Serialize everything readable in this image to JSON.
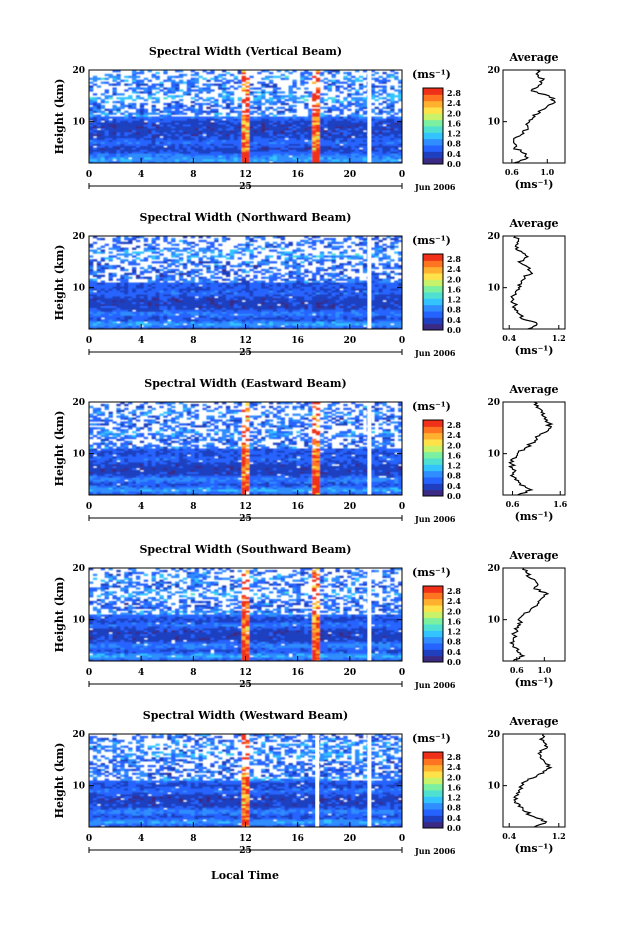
{
  "figure": {
    "xlabel": "Local Time",
    "date_label": "Jun 2006",
    "day_label": "25",
    "avg_title": "Average",
    "unit_label": "(ms⁻¹)",
    "ylabel": "Height (km)"
  },
  "colormap": [
    "#3b2a84",
    "#1f3fbf",
    "#2563ff",
    "#2f8dff",
    "#33c4ff",
    "#4fe0d2",
    "#7af0a0",
    "#c8f26a",
    "#ffe24a",
    "#ffb02e",
    "#ff7420",
    "#f03018"
  ],
  "chart_data": [
    {
      "type": "heatmap",
      "title": "Spectral Width (Vertical Beam)",
      "xlabel": "",
      "ylabel": "Height (km)",
      "xlim": [
        0,
        24
      ],
      "ylim": [
        2,
        20
      ],
      "x_ticks": [
        "0",
        "4",
        "8",
        "12",
        "16",
        "20",
        "0"
      ],
      "y_ticks": [
        "10",
        "20"
      ],
      "colorbar": {
        "ticks": [
          "0.0",
          "0.4",
          "0.8",
          "1.2",
          "1.6",
          "2.0",
          "2.4",
          "2.8"
        ],
        "range": [
          0,
          3.0
        ]
      },
      "bands": [
        [
          2.5,
          0.5
        ],
        [
          3.5,
          0.35
        ],
        [
          6,
          0.3
        ],
        [
          11,
          0.3
        ],
        [
          14.5,
          0.4
        ],
        [
          16,
          0.1
        ],
        [
          18.5,
          0.3
        ]
      ],
      "hot_columns": [
        12,
        17.5
      ],
      "gap_columns": [
        21.5
      ],
      "average": {
        "xlim": [
          0.5,
          1.2
        ],
        "x_ticks": [
          "0.6",
          "1.0"
        ],
        "profile": [
          [
            2,
            0.62
          ],
          [
            3,
            0.78
          ],
          [
            4,
            0.72
          ],
          [
            5,
            0.63
          ],
          [
            6,
            0.62
          ],
          [
            7,
            0.65
          ],
          [
            8,
            0.72
          ],
          [
            9,
            0.78
          ],
          [
            10,
            0.8
          ],
          [
            11,
            0.86
          ],
          [
            12,
            0.9
          ],
          [
            13,
            1.0
          ],
          [
            14,
            1.08
          ],
          [
            15,
            1.02
          ],
          [
            16,
            0.82
          ],
          [
            17,
            0.9
          ],
          [
            18,
            0.95
          ],
          [
            19,
            0.9
          ],
          [
            20,
            0.88
          ]
        ]
      }
    },
    {
      "type": "heatmap",
      "title": "Spectral Width (Northward Beam)",
      "xlabel": "",
      "ylabel": "Height (km)",
      "xlim": [
        0,
        24
      ],
      "ylim": [
        2,
        20
      ],
      "x_ticks": [
        "0",
        "4",
        "8",
        "12",
        "16",
        "20",
        "0"
      ],
      "y_ticks": [
        "10",
        "20"
      ],
      "colorbar": {
        "ticks": [
          "0.0",
          "0.4",
          "0.8",
          "1.2",
          "1.6",
          "2.0",
          "2.4",
          "2.8"
        ],
        "range": [
          0,
          3.0
        ]
      },
      "bands": [
        [
          3,
          0.6
        ],
        [
          5,
          0.4
        ],
        [
          9,
          0.25
        ],
        [
          10.5,
          0.2
        ],
        [
          16,
          0.25
        ],
        [
          17,
          0.2
        ]
      ],
      "hot_columns": [],
      "gap_columns": [
        21.5
      ],
      "average": {
        "xlim": [
          0.3,
          1.3
        ],
        "x_ticks": [
          "0.4",
          "1.2"
        ],
        "profile": [
          [
            2,
            0.7
          ],
          [
            3,
            0.85
          ],
          [
            4,
            0.6
          ],
          [
            5,
            0.55
          ],
          [
            6,
            0.5
          ],
          [
            7,
            0.47
          ],
          [
            8,
            0.45
          ],
          [
            9,
            0.5
          ],
          [
            10,
            0.55
          ],
          [
            11,
            0.6
          ],
          [
            12,
            0.65
          ],
          [
            13,
            0.75
          ],
          [
            14,
            0.7
          ],
          [
            15,
            0.55
          ],
          [
            16,
            0.7
          ],
          [
            17,
            0.6
          ],
          [
            18,
            0.5
          ],
          [
            19,
            0.55
          ],
          [
            20,
            0.5
          ]
        ]
      }
    },
    {
      "type": "heatmap",
      "title": "Spectral Width (Eastward Beam)",
      "xlabel": "",
      "ylabel": "Height (km)",
      "xlim": [
        0,
        24
      ],
      "ylim": [
        2,
        20
      ],
      "x_ticks": [
        "0",
        "4",
        "8",
        "12",
        "16",
        "20",
        "0"
      ],
      "y_ticks": [
        "10",
        "20"
      ],
      "colorbar": {
        "ticks": [
          "0.0",
          "0.4",
          "0.8",
          "1.2",
          "1.6",
          "2.0",
          "2.4",
          "2.8"
        ],
        "range": [
          0,
          3.0
        ]
      },
      "bands": [
        [
          3,
          0.6
        ],
        [
          5,
          0.45
        ],
        [
          9,
          0.25
        ],
        [
          10.5,
          0.2
        ],
        [
          14,
          0.25
        ],
        [
          18,
          0.2
        ]
      ],
      "hot_columns": [
        12,
        17.5
      ],
      "gap_columns": [
        21.5
      ],
      "average": {
        "xlim": [
          0.4,
          1.7
        ],
        "x_ticks": [
          "0.6",
          "1.6"
        ],
        "profile": [
          [
            2,
            0.7
          ],
          [
            3,
            1.0
          ],
          [
            4,
            0.75
          ],
          [
            5,
            0.65
          ],
          [
            6,
            0.62
          ],
          [
            7,
            0.6
          ],
          [
            8,
            0.58
          ],
          [
            9,
            0.6
          ],
          [
            10,
            0.7
          ],
          [
            11,
            0.85
          ],
          [
            12,
            1.0
          ],
          [
            13,
            1.1
          ],
          [
            14,
            1.25
          ],
          [
            15,
            1.4
          ],
          [
            16,
            1.35
          ],
          [
            17,
            1.3
          ],
          [
            18,
            1.2
          ],
          [
            19,
            1.1
          ],
          [
            20,
            1.05
          ]
        ]
      }
    },
    {
      "type": "heatmap",
      "title": "Spectral Width (Southward Beam)",
      "xlabel": "",
      "ylabel": "Height (km)",
      "xlim": [
        0,
        24
      ],
      "ylim": [
        2,
        20
      ],
      "x_ticks": [
        "0",
        "4",
        "8",
        "12",
        "16",
        "20",
        "0"
      ],
      "y_ticks": [
        "10",
        "20"
      ],
      "colorbar": {
        "ticks": [
          "0.0",
          "0.4",
          "0.8",
          "1.2",
          "1.6",
          "2.0",
          "2.4",
          "2.8"
        ],
        "range": [
          0,
          3.0
        ]
      },
      "bands": [
        [
          3,
          0.6
        ],
        [
          5,
          0.45
        ],
        [
          9,
          0.3
        ],
        [
          11,
          0.3
        ],
        [
          15,
          0.35
        ],
        [
          18,
          0.25
        ]
      ],
      "hot_columns": [
        12,
        17.5
      ],
      "gap_columns": [
        21.5
      ],
      "average": {
        "xlim": [
          0.4,
          1.3
        ],
        "x_ticks": [
          "0.6",
          "1.0"
        ],
        "profile": [
          [
            2,
            0.55
          ],
          [
            3,
            0.7
          ],
          [
            4,
            0.6
          ],
          [
            5,
            0.55
          ],
          [
            6,
            0.55
          ],
          [
            7,
            0.56
          ],
          [
            8,
            0.6
          ],
          [
            9,
            0.65
          ],
          [
            10,
            0.62
          ],
          [
            11,
            0.7
          ],
          [
            12,
            0.8
          ],
          [
            13,
            0.9
          ],
          [
            14,
            0.95
          ],
          [
            15,
            1.05
          ],
          [
            16,
            0.85
          ],
          [
            17,
            0.9
          ],
          [
            18,
            0.8
          ],
          [
            19,
            0.75
          ],
          [
            20,
            0.7
          ]
        ]
      }
    },
    {
      "type": "heatmap",
      "title": "Spectral Width (Westward Beam)",
      "xlabel": "Local Time",
      "ylabel": "Height (km)",
      "xlim": [
        0,
        24
      ],
      "ylim": [
        2,
        20
      ],
      "x_ticks": [
        "0",
        "4",
        "8",
        "12",
        "16",
        "20",
        "0"
      ],
      "y_ticks": [
        "10",
        "20"
      ],
      "colorbar": {
        "ticks": [
          "0.0",
          "0.4",
          "0.8",
          "1.2",
          "1.6",
          "2.0",
          "2.4",
          "2.8"
        ],
        "range": [
          0,
          3.0
        ]
      },
      "bands": [
        [
          3,
          0.55
        ],
        [
          5,
          0.45
        ],
        [
          9,
          0.3
        ],
        [
          11,
          0.25
        ],
        [
          16,
          0.3
        ],
        [
          18,
          0.25
        ]
      ],
      "hot_columns": [
        12
      ],
      "gap_columns": [
        17.5,
        21.5
      ],
      "average": {
        "xlim": [
          0.3,
          1.3
        ],
        "x_ticks": [
          "0.4",
          "1.2"
        ],
        "profile": [
          [
            2,
            0.8
          ],
          [
            3,
            1.0
          ],
          [
            4,
            0.8
          ],
          [
            5,
            0.65
          ],
          [
            6,
            0.55
          ],
          [
            7,
            0.5
          ],
          [
            8,
            0.5
          ],
          [
            9,
            0.55
          ],
          [
            10,
            0.6
          ],
          [
            11,
            0.7
          ],
          [
            12,
            0.85
          ],
          [
            13,
            1.0
          ],
          [
            14,
            1.05
          ],
          [
            15,
            0.95
          ],
          [
            16,
            0.9
          ],
          [
            17,
            0.95
          ],
          [
            18,
            1.0
          ],
          [
            19,
            0.9
          ],
          [
            20,
            0.95
          ]
        ]
      }
    }
  ]
}
